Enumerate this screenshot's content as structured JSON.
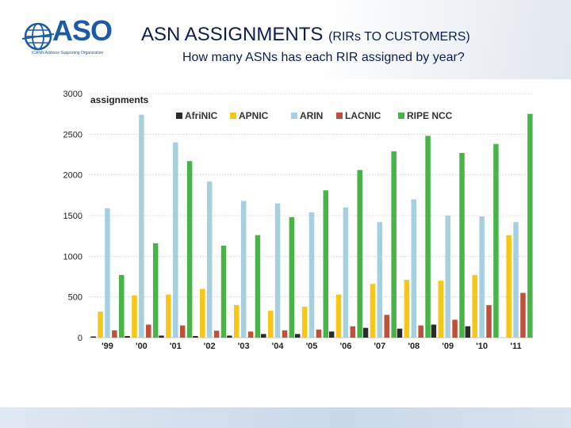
{
  "header": {
    "logo_text": "ASO",
    "logo_subtext": "ICANN Address Supporting Organization",
    "title_main": "ASN ASSIGNMENTS ",
    "title_small": "(RIRs TO CUSTOMERS)",
    "subtitle": "How many ASNs has each RIR assigned by year?"
  },
  "colors": {
    "title": "#0b1e4f",
    "logo": "#1d5aa6"
  },
  "chart_data": {
    "type": "bar",
    "ylabel": "assignments",
    "ylim": [
      0,
      3000
    ],
    "yticks": [
      0,
      500,
      1000,
      1500,
      2000,
      2500,
      3000
    ],
    "grid": true,
    "legend_position": "top",
    "categories": [
      "'99",
      "'00",
      "'01",
      "'02",
      "'03",
      "'04",
      "'05",
      "'06",
      "'07",
      "'08",
      "'09",
      "'10",
      "'11"
    ],
    "series": [
      {
        "name": "AfriNIC",
        "color": "#2b2b2b",
        "values": [
          15,
          20,
          25,
          20,
          25,
          45,
          45,
          75,
          120,
          110,
          160,
          140,
          0
        ]
      },
      {
        "name": "APNIC",
        "color": "#f7c617",
        "values": [
          320,
          520,
          530,
          600,
          400,
          330,
          380,
          530,
          660,
          710,
          700,
          770,
          1260
        ]
      },
      {
        "name": "ARIN",
        "color": "#a6cfe0",
        "values": [
          1590,
          2740,
          2400,
          1920,
          1680,
          1650,
          1540,
          1600,
          1420,
          1700,
          1500,
          1490,
          1420
        ]
      },
      {
        "name": "LACNIC",
        "color": "#c0503a",
        "values": [
          90,
          160,
          150,
          85,
          75,
          90,
          100,
          140,
          280,
          150,
          220,
          400,
          550
        ]
      },
      {
        "name": "RIPE NCC",
        "color": "#48b448",
        "values": [
          770,
          1160,
          2170,
          1130,
          1260,
          1480,
          1810,
          2060,
          2290,
          2480,
          2270,
          2380,
          2750
        ]
      }
    ]
  }
}
